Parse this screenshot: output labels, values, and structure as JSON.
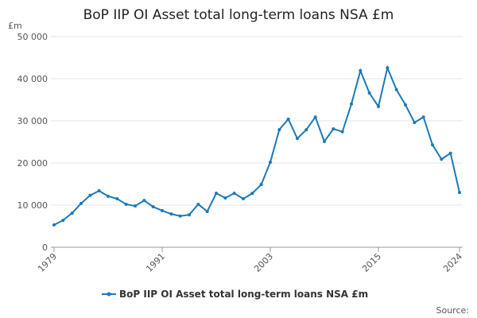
{
  "chart_data": {
    "type": "line",
    "title": "BoP IIP OI Asset total long-term loans NSA £m",
    "y_unit": "£m",
    "source": "Source:",
    "x": [
      1979,
      1980,
      1981,
      1982,
      1983,
      1984,
      1985,
      1986,
      1987,
      1988,
      1989,
      1990,
      1991,
      1992,
      1993,
      1994,
      1995,
      1996,
      1997,
      1998,
      1999,
      2000,
      2001,
      2002,
      2003,
      2004,
      2005,
      2006,
      2007,
      2008,
      2009,
      2010,
      2011,
      2012,
      2013,
      2014,
      2015,
      2016,
      2017,
      2018,
      2019,
      2020,
      2021,
      2022,
      2023,
      2024
    ],
    "series": [
      {
        "name": "BoP IIP OI Asset total long-term loans NSA £m",
        "color": "#1a7ab7",
        "values": [
          5300,
          6400,
          8100,
          10400,
          12300,
          13400,
          12100,
          11500,
          10200,
          9800,
          11100,
          9600,
          8700,
          7900,
          7400,
          7700,
          10200,
          8500,
          12800,
          11700,
          12800,
          11500,
          12800,
          14900,
          20200,
          27900,
          30400,
          25800,
          27900,
          30900,
          25100,
          28100,
          27400,
          34000,
          41900,
          36600,
          33400,
          42600,
          37400,
          33800,
          29600,
          30900,
          24300,
          20900,
          22300,
          13000
        ]
      }
    ],
    "xlim": [
      1979,
      2024
    ],
    "xticks": [
      1979,
      1991,
      2003,
      2015,
      2024
    ],
    "ylim": [
      0,
      50000
    ],
    "yticks": [
      0,
      {
        "value": 10000,
        "label": "10 000"
      },
      {
        "value": 20000,
        "label": "20 000"
      },
      {
        "value": 30000,
        "label": "30 000"
      },
      {
        "value": 40000,
        "label": "40 000"
      },
      {
        "value": 50000,
        "label": "50 000"
      }
    ],
    "grid": true
  }
}
